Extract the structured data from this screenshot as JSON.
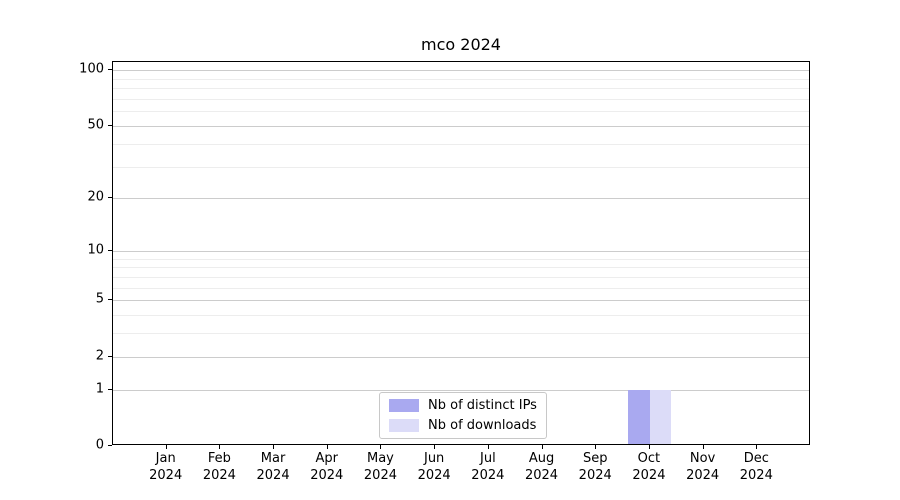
{
  "chart_data": {
    "type": "bar",
    "title": "mco 2024",
    "x_tick_labels": [
      {
        "line1": "Jan",
        "line2": "2024"
      },
      {
        "line1": "Feb",
        "line2": "2024"
      },
      {
        "line1": "Mar",
        "line2": "2024"
      },
      {
        "line1": "Apr",
        "line2": "2024"
      },
      {
        "line1": "May",
        "line2": "2024"
      },
      {
        "line1": "Jun",
        "line2": "2024"
      },
      {
        "line1": "Jul",
        "line2": "2024"
      },
      {
        "line1": "Aug",
        "line2": "2024"
      },
      {
        "line1": "Sep",
        "line2": "2024"
      },
      {
        "line1": "Oct",
        "line2": "2024"
      },
      {
        "line1": "Nov",
        "line2": "2024"
      },
      {
        "line1": "Dec",
        "line2": "2024"
      }
    ],
    "series": [
      {
        "name": "Nb of distinct IPs",
        "color": "#a9a9f0",
        "values": [
          0,
          0,
          0,
          0,
          0,
          0,
          0,
          0,
          0,
          1,
          0,
          0
        ]
      },
      {
        "name": "Nb of downloads",
        "color": "#dcdcf8",
        "values": [
          0,
          0,
          0,
          0,
          0,
          0,
          0,
          0,
          0,
          1,
          0,
          0
        ]
      }
    ],
    "yticks": [
      0,
      1,
      2,
      5,
      10,
      20,
      50,
      100
    ],
    "scale": "log1p",
    "ylim": [
      0,
      111
    ],
    "grid": "both",
    "legend_position": "lower center"
  },
  "colors": {
    "grid_major": "#cccccc",
    "grid_minor": "#ededed",
    "axis": "#000000",
    "background": "#ffffff"
  }
}
